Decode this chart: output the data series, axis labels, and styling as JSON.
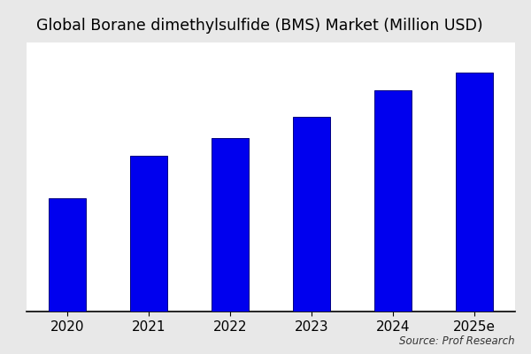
{
  "title": "Global Borane dimethylsulfide (BMS) Market (Million USD)",
  "categories": [
    "2020",
    "2021",
    "2022",
    "2023",
    "2024",
    "2025e"
  ],
  "values": [
    38,
    52,
    58,
    65,
    74,
    80
  ],
  "bar_color": "#0000EE",
  "bar_edgecolor": "#000080",
  "figure_bg_color": "#e8e8e8",
  "plot_bg_color": "#ffffff",
  "source_text": "Source: Prof Research",
  "title_fontsize": 12.5,
  "tick_fontsize": 11,
  "source_fontsize": 8.5,
  "ylim": [
    0,
    90
  ],
  "bar_width": 0.45
}
